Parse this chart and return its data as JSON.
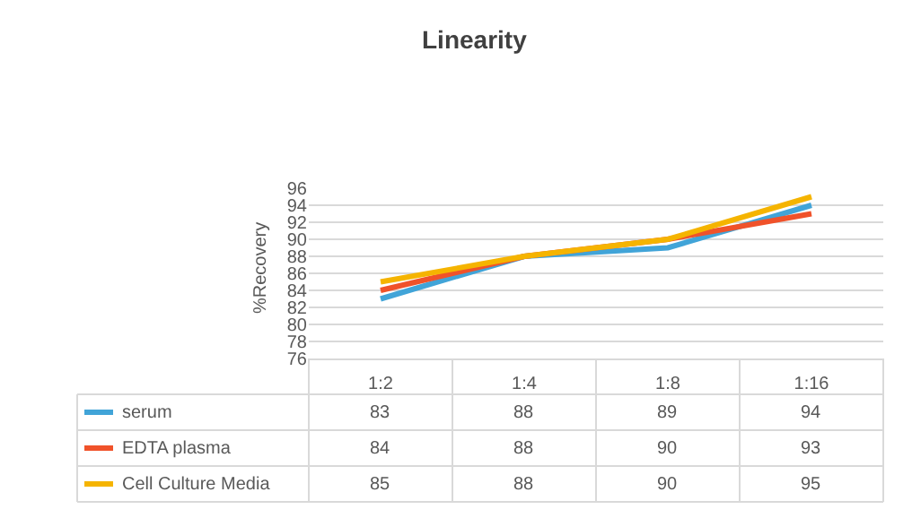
{
  "chart_data": {
    "type": "line",
    "title": "Linearity",
    "ylabel": "%Recovery",
    "categories": [
      "1:2",
      "1:4",
      "1:8",
      "1:16"
    ],
    "series": [
      {
        "name": "serum",
        "color": "#41a4d8",
        "values": [
          83,
          88,
          89,
          94
        ]
      },
      {
        "name": "EDTA plasma",
        "color": "#f0522a",
        "values": [
          84,
          88,
          90,
          93
        ]
      },
      {
        "name": "Cell Culture Media",
        "color": "#f5b400",
        "values": [
          85,
          88,
          90,
          95
        ]
      }
    ],
    "ylim": [
      76,
      96
    ],
    "yticks": [
      76,
      78,
      80,
      82,
      84,
      86,
      88,
      90,
      92,
      94,
      96
    ],
    "grid": "y",
    "legend": "bottom left",
    "data_labels": true,
    "line_style": "solid",
    "marker": "none"
  }
}
